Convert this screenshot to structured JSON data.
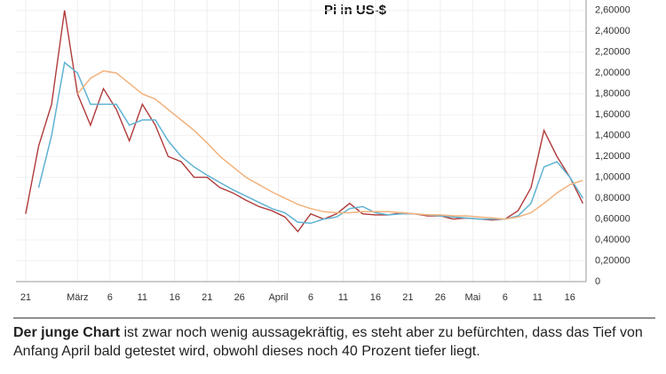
{
  "chart_data": {
    "type": "line",
    "title": "Pi in US-$",
    "x": [
      0,
      2,
      4,
      6,
      8,
      10,
      12,
      14,
      16,
      18,
      20,
      22,
      24,
      26,
      28,
      30,
      32,
      34,
      36,
      38,
      40,
      42,
      44,
      46,
      48,
      50,
      52,
      54,
      56,
      58,
      60,
      62,
      64,
      66,
      68,
      70,
      72,
      74,
      76,
      78,
      80,
      82,
      84,
      86
    ],
    "series": [
      {
        "color": "#b03a3a",
        "values": [
          0.65,
          1.3,
          1.7,
          2.6,
          1.8,
          1.5,
          1.85,
          1.65,
          1.35,
          1.7,
          1.5,
          1.2,
          1.15,
          1.0,
          1.0,
          0.9,
          0.85,
          0.78,
          0.72,
          0.68,
          0.62,
          0.48,
          0.65,
          0.6,
          0.65,
          0.75,
          0.65,
          0.64,
          0.64,
          0.66,
          0.65,
          0.63,
          0.63,
          0.6,
          0.61,
          0.6,
          0.59,
          0.6,
          0.68,
          0.9,
          1.45,
          1.2,
          1.0,
          0.75
        ]
      },
      {
        "color": "#5fb3d3",
        "values": [
          null,
          0.9,
          1.4,
          2.1,
          2.0,
          1.7,
          1.7,
          1.7,
          1.5,
          1.55,
          1.55,
          1.35,
          1.2,
          1.1,
          1.02,
          0.95,
          0.88,
          0.82,
          0.76,
          0.7,
          0.66,
          0.57,
          0.56,
          0.6,
          0.62,
          0.7,
          0.72,
          0.66,
          0.64,
          0.65,
          0.65,
          0.64,
          0.63,
          0.62,
          0.61,
          0.6,
          0.6,
          0.6,
          0.63,
          0.75,
          1.1,
          1.15,
          1.0,
          0.8
        ]
      },
      {
        "color": "#f2b27c",
        "values": [
          null,
          null,
          null,
          null,
          1.8,
          1.95,
          2.02,
          2.0,
          1.9,
          1.8,
          1.75,
          1.65,
          1.55,
          1.45,
          1.33,
          1.2,
          1.1,
          1.0,
          0.93,
          0.86,
          0.8,
          0.74,
          0.7,
          0.67,
          0.66,
          0.66,
          0.67,
          0.67,
          0.67,
          0.66,
          0.65,
          0.64,
          0.64,
          0.63,
          0.63,
          0.62,
          0.61,
          0.6,
          0.62,
          0.66,
          0.75,
          0.85,
          0.93,
          0.97
        ]
      }
    ],
    "xlim": [
      -1.5,
      86.5
    ],
    "xticks": [
      {
        "value": 0,
        "label": "21"
      },
      {
        "value": 8,
        "label": "März"
      },
      {
        "value": 13,
        "label": "6"
      },
      {
        "value": 18,
        "label": "11"
      },
      {
        "value": 23,
        "label": "16"
      },
      {
        "value": 28,
        "label": "21"
      },
      {
        "value": 33,
        "label": "26"
      },
      {
        "value": 39,
        "label": "April"
      },
      {
        "value": 44,
        "label": "6"
      },
      {
        "value": 49,
        "label": "11"
      },
      {
        "value": 54,
        "label": "16"
      },
      {
        "value": 59,
        "label": "21"
      },
      {
        "value": 64,
        "label": "26"
      },
      {
        "value": 69,
        "label": "Mai"
      },
      {
        "value": 74,
        "label": "6"
      },
      {
        "value": 79,
        "label": "11"
      },
      {
        "value": 84,
        "label": "16"
      }
    ],
    "ylim": [
      0,
      2.7
    ],
    "yticks": [
      0,
      {
        "value": 0.2,
        "label": "0,20000"
      },
      {
        "value": 0.4,
        "label": "0,40000"
      },
      {
        "value": 0.6,
        "label": "0,60000"
      },
      {
        "value": 0.8,
        "label": "0,80000"
      },
      {
        "value": 1.0,
        "label": "1,00000"
      },
      {
        "value": 1.2,
        "label": "1,20000"
      },
      {
        "value": 1.4,
        "label": "1,40000"
      },
      {
        "value": 1.6,
        "label": "1,60000"
      },
      {
        "value": 1.8,
        "label": "1,80000"
      },
      {
        "value": 2.0,
        "label": "2,00000"
      },
      {
        "value": 2.2,
        "label": "2,20000"
      },
      {
        "value": 2.4,
        "label": "2,40000"
      },
      {
        "value": 2.6,
        "label": "2,60000"
      }
    ],
    "grid": true
  },
  "caption": {
    "bold": "Der junge Chart",
    "text": "ist zwar noch wenig aussagekräftig, es steht aber zu befürchten, dass das Tief von Anfang April bald getestet wird, obwohl dieses noch 40 Prozent tiefer liegt."
  }
}
